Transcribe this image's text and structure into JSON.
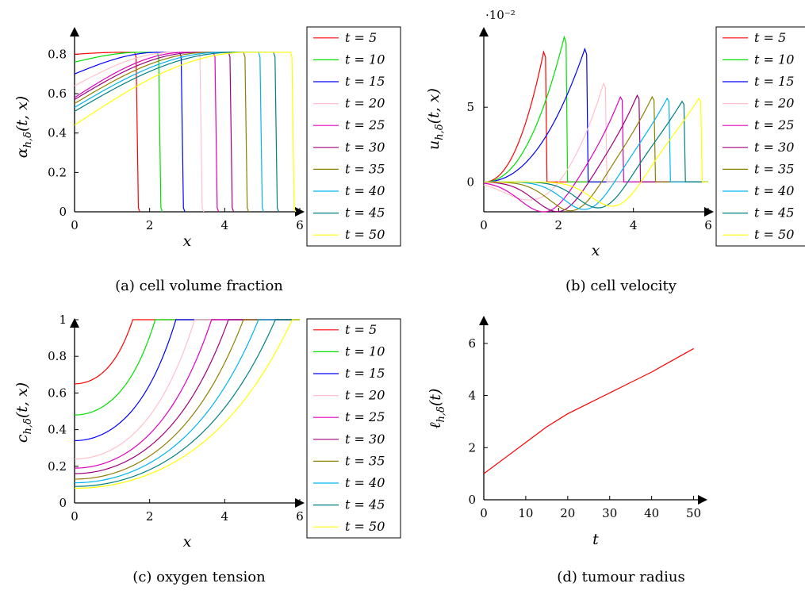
{
  "legend_labels": [
    "t = 5",
    "t = 10",
    "t = 15",
    "t = 20",
    "t = 25",
    "t = 30",
    "t = 35",
    "t = 40",
    "t = 45",
    "t = 50"
  ],
  "series_colors": [
    "#ff0000",
    "#00e000",
    "#0000ff",
    "#ffc0cb",
    "#e000c0",
    "#a0007f",
    "#8f8000",
    "#00b4f0",
    "#008080",
    "#ffff00"
  ],
  "chart_data": [
    {
      "type": "line",
      "caption": "(a) cell volume fraction",
      "xlabel": "x",
      "ylabel": "α_{h,δ}(t, x)",
      "xlim": [
        0,
        6
      ],
      "ylim": [
        0,
        0.85
      ],
      "xticks": [
        "0",
        "2",
        "4",
        "6"
      ],
      "yticks": [
        "0",
        "0.2",
        "0.4",
        "0.6",
        "0.8"
      ],
      "legend": "right",
      "series": [
        {
          "name": "t = 5",
          "center_value": 0.8,
          "front_x": 1.6,
          "plateau": 0.81
        },
        {
          "name": "t = 10",
          "center_value": 0.76,
          "front_x": 2.2,
          "plateau": 0.81
        },
        {
          "name": "t = 15",
          "center_value": 0.7,
          "front_x": 2.8,
          "plateau": 0.81
        },
        {
          "name": "t = 20",
          "center_value": 0.64,
          "front_x": 3.3,
          "plateau": 0.81
        },
        {
          "name": "t = 25",
          "center_value": 0.58,
          "front_x": 3.7,
          "plateau": 0.81
        },
        {
          "name": "t = 30",
          "center_value": 0.57,
          "front_x": 4.1,
          "plateau": 0.81
        },
        {
          "name": "t = 35",
          "center_value": 0.55,
          "front_x": 4.5,
          "plateau": 0.81
        },
        {
          "name": "t = 40",
          "center_value": 0.53,
          "front_x": 4.9,
          "plateau": 0.81
        },
        {
          "name": "t = 45",
          "center_value": 0.51,
          "front_x": 5.3,
          "plateau": 0.81
        },
        {
          "name": "t = 50",
          "center_value": 0.44,
          "front_x": 5.75,
          "plateau": 0.81
        }
      ]
    },
    {
      "type": "line",
      "caption": "(b) cell velocity",
      "xlabel": "x",
      "ylabel": "u_{h,δ}(t, x)",
      "scale_note": "·10⁻²",
      "xlim": [
        0,
        6
      ],
      "ylim": [
        -2,
        10
      ],
      "xticks": [
        "0",
        "2",
        "4",
        "6"
      ],
      "yticks": [
        "0",
        "5"
      ],
      "legend": "right",
      "series": [
        {
          "name": "t = 5",
          "front_x": 1.6,
          "peak": 8.7,
          "dip": 0,
          "dip_x": 0
        },
        {
          "name": "t = 10",
          "front_x": 2.15,
          "peak": 9.7,
          "dip": 0,
          "dip_x": 0
        },
        {
          "name": "t = 15",
          "front_x": 2.7,
          "peak": 8.9,
          "dip": 0,
          "dip_x": 0
        },
        {
          "name": "t = 20",
          "front_x": 3.2,
          "peak": 6.6,
          "dip": -1.2,
          "dip_x": 1.2
        },
        {
          "name": "t = 25",
          "front_x": 3.65,
          "peak": 5.7,
          "dip": -2.0,
          "dip_x": 1.6
        },
        {
          "name": "t = 30",
          "front_x": 4.1,
          "peak": 5.8,
          "dip": -2.0,
          "dip_x": 2.0
        },
        {
          "name": "t = 35",
          "front_x": 4.5,
          "peak": 5.7,
          "dip": -2.0,
          "dip_x": 2.4
        },
        {
          "name": "t = 40",
          "front_x": 4.9,
          "peak": 5.6,
          "dip": -2.0,
          "dip_x": 2.8
        },
        {
          "name": "t = 45",
          "front_x": 5.3,
          "peak": 5.4,
          "dip": -2.0,
          "dip_x": 3.2
        },
        {
          "name": "t = 50",
          "front_x": 5.75,
          "peak": 5.6,
          "dip": -2.0,
          "dip_x": 3.6
        }
      ]
    },
    {
      "type": "line",
      "caption": "(c) oxygen tension",
      "xlabel": "x",
      "ylabel": "c_{h,δ}(t, x)",
      "xlim": [
        0,
        6
      ],
      "ylim": [
        0,
        1
      ],
      "xticks": [
        "0",
        "2",
        "4",
        "6"
      ],
      "yticks": [
        "0",
        "0.2",
        "0.4",
        "0.6",
        "0.8",
        "1"
      ],
      "legend": "right",
      "series": [
        {
          "name": "t = 5",
          "center_value": 0.65,
          "reach_one_x": 1.55
        },
        {
          "name": "t = 10",
          "center_value": 0.48,
          "reach_one_x": 2.15
        },
        {
          "name": "t = 15",
          "center_value": 0.34,
          "reach_one_x": 2.7
        },
        {
          "name": "t = 20",
          "center_value": 0.24,
          "reach_one_x": 3.2
        },
        {
          "name": "t = 25",
          "center_value": 0.19,
          "reach_one_x": 3.65
        },
        {
          "name": "t = 30",
          "center_value": 0.16,
          "reach_one_x": 4.1
        },
        {
          "name": "t = 35",
          "center_value": 0.13,
          "reach_one_x": 4.5
        },
        {
          "name": "t = 40",
          "center_value": 0.11,
          "reach_one_x": 4.9
        },
        {
          "name": "t = 45",
          "center_value": 0.09,
          "reach_one_x": 5.35
        },
        {
          "name": "t = 50",
          "center_value": 0.08,
          "reach_one_x": 5.8
        }
      ]
    },
    {
      "type": "line",
      "caption": "(d) tumour radius",
      "xlabel": "t",
      "ylabel": "ℓ_{h,δ}(t)",
      "xlim": [
        0,
        55
      ],
      "ylim": [
        0,
        7
      ],
      "xticks": [
        "0",
        "10",
        "20",
        "30",
        "40",
        "50"
      ],
      "yticks": [
        "0",
        "2",
        "4",
        "6"
      ],
      "series": [
        {
          "color": "#ff0000",
          "x": [
            0,
            5,
            10,
            15,
            20,
            25,
            30,
            35,
            40,
            45,
            50
          ],
          "y": [
            1.0,
            1.6,
            2.2,
            2.8,
            3.3,
            3.7,
            4.1,
            4.5,
            4.9,
            5.35,
            5.8
          ]
        }
      ]
    }
  ]
}
